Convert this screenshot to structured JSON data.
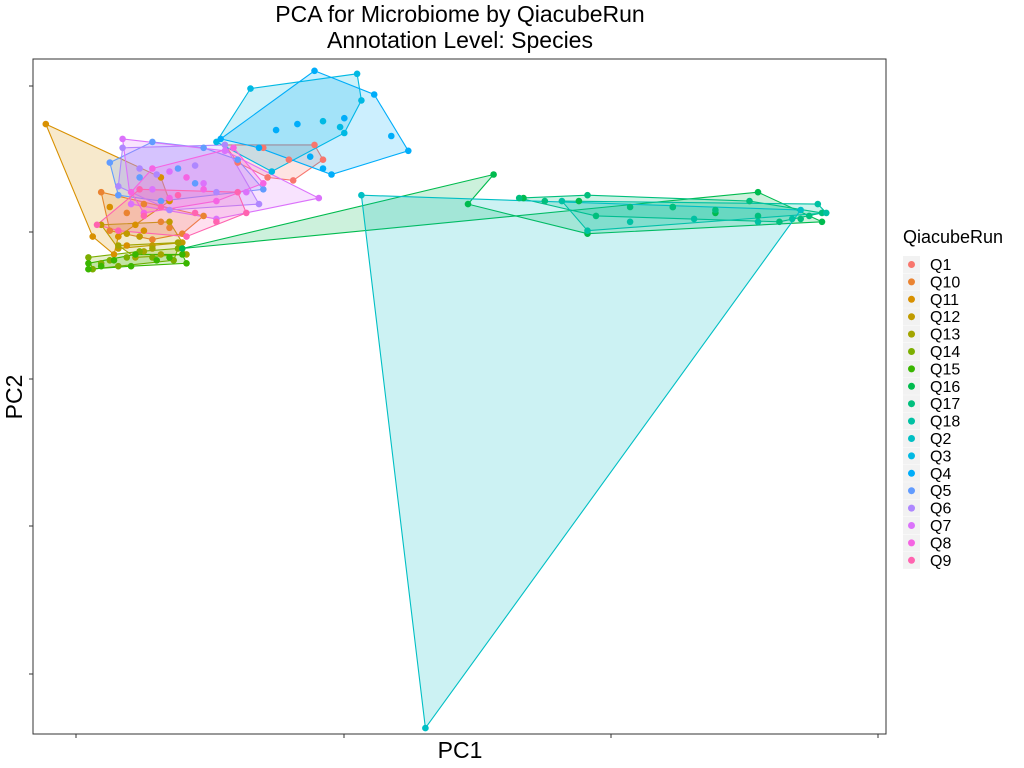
{
  "chart_data": {
    "type": "scatter",
    "title": "PCA for Microbiome by QiacubeRun",
    "subtitle": "Annotation Level: Species",
    "xlabel": "PC1",
    "ylabel": "PC2",
    "x_ticks_labeled": false,
    "y_ticks_labeled": false,
    "grid": false,
    "legend": {
      "title": "QiacubeRun",
      "position": "right"
    },
    "series": [
      {
        "name": "Q1",
        "color": "#F8766D",
        "hull": [
          [
            35,
            29
          ],
          [
            56,
            29
          ],
          [
            58,
            34
          ],
          [
            51,
            41
          ],
          [
            45,
            40
          ],
          [
            38,
            35
          ]
        ],
        "points": [
          [
            35,
            29
          ],
          [
            56,
            29
          ],
          [
            58,
            34
          ],
          [
            51,
            41
          ],
          [
            45,
            40
          ],
          [
            38,
            35
          ],
          [
            44,
            30
          ],
          [
            50,
            34
          ]
        ]
      },
      {
        "name": "Q10",
        "color": "#EA8331",
        "hull": [
          [
            6,
            45
          ],
          [
            30,
            53
          ],
          [
            25,
            59
          ],
          [
            18,
            61
          ],
          [
            8,
            58
          ]
        ],
        "points": [
          [
            6,
            45
          ],
          [
            30,
            53
          ],
          [
            25,
            59
          ],
          [
            18,
            61
          ],
          [
            8,
            58
          ],
          [
            12,
            52
          ],
          [
            20,
            55
          ],
          [
            16,
            49
          ],
          [
            22,
            57
          ]
        ]
      },
      {
        "name": "Q11",
        "color": "#D89000",
        "hull": [
          [
            -7,
            22
          ],
          [
            20,
            40
          ],
          [
            22,
            48
          ],
          [
            10,
            60
          ],
          [
            9,
            66
          ],
          [
            4,
            60
          ]
        ],
        "points": [
          [
            -7,
            22
          ],
          [
            20,
            40
          ],
          [
            22,
            48
          ],
          [
            10,
            60
          ],
          [
            9,
            66
          ],
          [
            4,
            60
          ],
          [
            8,
            50
          ],
          [
            14,
            56
          ],
          [
            12,
            63
          ],
          [
            16,
            58
          ]
        ]
      },
      {
        "name": "Q12",
        "color": "#C09B00",
        "hull": [
          [
            6,
            56
          ],
          [
            22,
            55
          ],
          [
            25,
            62
          ],
          [
            10,
            64
          ]
        ],
        "points": [
          [
            6,
            56
          ],
          [
            22,
            55
          ],
          [
            25,
            62
          ],
          [
            10,
            64
          ],
          [
            15,
            60
          ],
          [
            18,
            63
          ],
          [
            12,
            59
          ]
        ]
      },
      {
        "name": "Q13",
        "color": "#A3A500",
        "hull": [
          [
            10,
            63
          ],
          [
            24,
            62
          ],
          [
            26,
            66
          ],
          [
            14,
            67
          ]
        ],
        "points": [
          [
            10,
            63
          ],
          [
            24,
            62
          ],
          [
            26,
            66
          ],
          [
            14,
            67
          ],
          [
            18,
            64
          ],
          [
            20,
            66
          ],
          [
            16,
            65
          ]
        ]
      },
      {
        "name": "Q14",
        "color": "#7CAE00",
        "hull": [
          [
            3,
            67
          ],
          [
            15,
            65
          ],
          [
            24,
            64
          ],
          [
            23,
            68
          ],
          [
            10,
            70
          ],
          [
            4,
            71
          ]
        ],
        "points": [
          [
            3,
            67
          ],
          [
            15,
            65
          ],
          [
            24,
            64
          ],
          [
            23,
            68
          ],
          [
            10,
            70
          ],
          [
            4,
            71
          ],
          [
            8,
            68
          ],
          [
            12,
            67
          ],
          [
            18,
            67
          ],
          [
            6,
            69
          ]
        ]
      },
      {
        "name": "Q15",
        "color": "#39B600",
        "hull": [
          [
            3,
            69
          ],
          [
            14,
            66
          ],
          [
            25,
            66
          ],
          [
            26,
            69
          ],
          [
            13,
            70
          ],
          [
            3,
            71
          ]
        ],
        "points": [
          [
            3,
            69
          ],
          [
            14,
            66
          ],
          [
            25,
            66
          ],
          [
            26,
            69
          ],
          [
            13,
            70
          ],
          [
            3,
            71
          ],
          [
            6,
            70
          ],
          [
            9,
            68
          ],
          [
            19,
            68
          ],
          [
            22,
            67
          ]
        ]
      },
      {
        "name": "Q16",
        "color": "#00BB4E",
        "hull": [
          [
            25,
            64
          ],
          [
            98,
            39
          ],
          [
            92,
            49
          ],
          [
            120,
            59
          ],
          [
            175,
            55
          ],
          [
            160,
            45
          ]
        ],
        "points": [
          [
            25,
            64
          ],
          [
            98,
            39
          ],
          [
            92,
            49
          ],
          [
            120,
            59
          ],
          [
            175,
            55
          ],
          [
            160,
            45
          ],
          [
            105,
            47
          ],
          [
            118,
            48
          ],
          [
            140,
            50
          ],
          [
            150,
            52
          ]
        ]
      },
      {
        "name": "Q17",
        "color": "#00BF7D",
        "hull": [
          [
            104,
            47
          ],
          [
            120,
            46
          ],
          [
            158,
            48
          ],
          [
            175,
            52
          ],
          [
            165,
            55
          ],
          [
            122,
            53
          ]
        ],
        "points": [
          [
            104,
            47
          ],
          [
            120,
            46
          ],
          [
            158,
            48
          ],
          [
            175,
            52
          ],
          [
            165,
            55
          ],
          [
            122,
            53
          ],
          [
            110,
            48
          ],
          [
            130,
            50
          ],
          [
            140,
            50
          ],
          [
            150,
            51
          ],
          [
            160,
            53
          ],
          [
            170,
            54
          ],
          [
            172,
            53
          ]
        ]
      },
      {
        "name": "Q18",
        "color": "#00C1A3",
        "hull": [
          [
            114,
            48
          ],
          [
            174,
            49
          ],
          [
            176,
            52
          ],
          [
            120,
            58
          ]
        ],
        "points": [
          [
            114,
            48
          ],
          [
            174,
            49
          ],
          [
            176,
            52
          ],
          [
            120,
            58
          ],
          [
            130,
            55
          ],
          [
            145,
            54
          ],
          [
            160,
            55
          ],
          [
            168,
            54
          ]
        ]
      },
      {
        "name": "Q2",
        "color": "#00BFC4",
        "hull": [
          [
            67,
            46
          ],
          [
            170,
            51
          ],
          [
            82,
            226
          ]
        ],
        "points": [
          [
            67,
            46
          ],
          [
            170,
            51
          ],
          [
            82,
            226
          ]
        ]
      },
      {
        "name": "Q3",
        "color": "#00B9E3",
        "hull": [
          [
            41,
            10
          ],
          [
            66,
            5
          ],
          [
            67,
            14
          ],
          [
            63,
            25
          ],
          [
            46,
            38
          ],
          [
            33,
            28
          ]
        ],
        "points": [
          [
            41,
            10
          ],
          [
            66,
            5
          ],
          [
            67,
            14
          ],
          [
            63,
            25
          ],
          [
            46,
            38
          ],
          [
            33,
            28
          ],
          [
            58,
            21
          ],
          [
            62,
            23
          ]
        ]
      },
      {
        "name": "Q4",
        "color": "#00ADFA",
        "hull": [
          [
            56,
            4
          ],
          [
            70,
            12
          ],
          [
            78,
            31
          ],
          [
            60,
            39
          ],
          [
            43,
            30
          ],
          [
            34,
            27
          ]
        ],
        "points": [
          [
            56,
            4
          ],
          [
            70,
            12
          ],
          [
            78,
            31
          ],
          [
            60,
            39
          ],
          [
            43,
            30
          ],
          [
            34,
            27
          ],
          [
            52,
            22
          ],
          [
            63,
            20
          ],
          [
            58,
            37
          ],
          [
            74,
            26
          ],
          [
            47,
            24
          ],
          [
            55,
            33
          ]
        ]
      },
      {
        "name": "Q5",
        "color": "#619CFF",
        "hull": [
          [
            8,
            35
          ],
          [
            18,
            28
          ],
          [
            30,
            30
          ],
          [
            38,
            34
          ],
          [
            44,
            44
          ],
          [
            20,
            48
          ],
          [
            10,
            46
          ]
        ],
        "points": [
          [
            8,
            35
          ],
          [
            18,
            28
          ],
          [
            30,
            30
          ],
          [
            38,
            34
          ],
          [
            44,
            44
          ],
          [
            20,
            48
          ],
          [
            10,
            46
          ],
          [
            24,
            37
          ],
          [
            28,
            42
          ],
          [
            15,
            40
          ]
        ]
      },
      {
        "name": "Q6",
        "color": "#AE87FF",
        "hull": [
          [
            11,
            30
          ],
          [
            35,
            29
          ],
          [
            43,
            49
          ],
          [
            22,
            51
          ],
          [
            10,
            43
          ]
        ],
        "points": [
          [
            11,
            30
          ],
          [
            35,
            29
          ],
          [
            43,
            49
          ],
          [
            22,
            51
          ],
          [
            10,
            43
          ],
          [
            19,
            39
          ],
          [
            28,
            36
          ],
          [
            33,
            45
          ],
          [
            15,
            37
          ]
        ]
      },
      {
        "name": "Q7",
        "color": "#DB72FB",
        "hull": [
          [
            11,
            27
          ],
          [
            35,
            31
          ],
          [
            57,
            47
          ],
          [
            33,
            54
          ],
          [
            13,
            49
          ]
        ],
        "points": [
          [
            11,
            27
          ],
          [
            35,
            31
          ],
          [
            57,
            47
          ],
          [
            33,
            54
          ],
          [
            13,
            49
          ],
          [
            22,
            38
          ],
          [
            30,
            42
          ],
          [
            40,
            45
          ],
          [
            18,
            44
          ]
        ]
      },
      {
        "name": "Q8",
        "color": "#F564E3",
        "hull": [
          [
            18,
            37
          ],
          [
            37,
            30
          ],
          [
            44,
            42
          ],
          [
            33,
            48
          ],
          [
            16,
            52
          ],
          [
            13,
            45
          ]
        ],
        "points": [
          [
            18,
            37
          ],
          [
            37,
            30
          ],
          [
            44,
            42
          ],
          [
            33,
            48
          ],
          [
            16,
            52
          ],
          [
            13,
            45
          ],
          [
            26,
            40
          ],
          [
            30,
            44
          ],
          [
            22,
            47
          ]
        ]
      },
      {
        "name": "Q9",
        "color": "#FF64B0",
        "hull": [
          [
            5,
            56
          ],
          [
            15,
            44
          ],
          [
            38,
            45
          ],
          [
            40,
            52
          ],
          [
            26,
            60
          ],
          [
            10,
            58
          ]
        ],
        "points": [
          [
            5,
            56
          ],
          [
            15,
            44
          ],
          [
            38,
            45
          ],
          [
            40,
            52
          ],
          [
            26,
            60
          ],
          [
            10,
            58
          ],
          [
            20,
            50
          ],
          [
            28,
            52
          ],
          [
            16,
            53
          ],
          [
            33,
            55
          ],
          [
            24,
            46
          ]
        ]
      }
    ],
    "xlim": [
      -10,
      190
    ],
    "ylim": [
      0,
      228
    ]
  }
}
